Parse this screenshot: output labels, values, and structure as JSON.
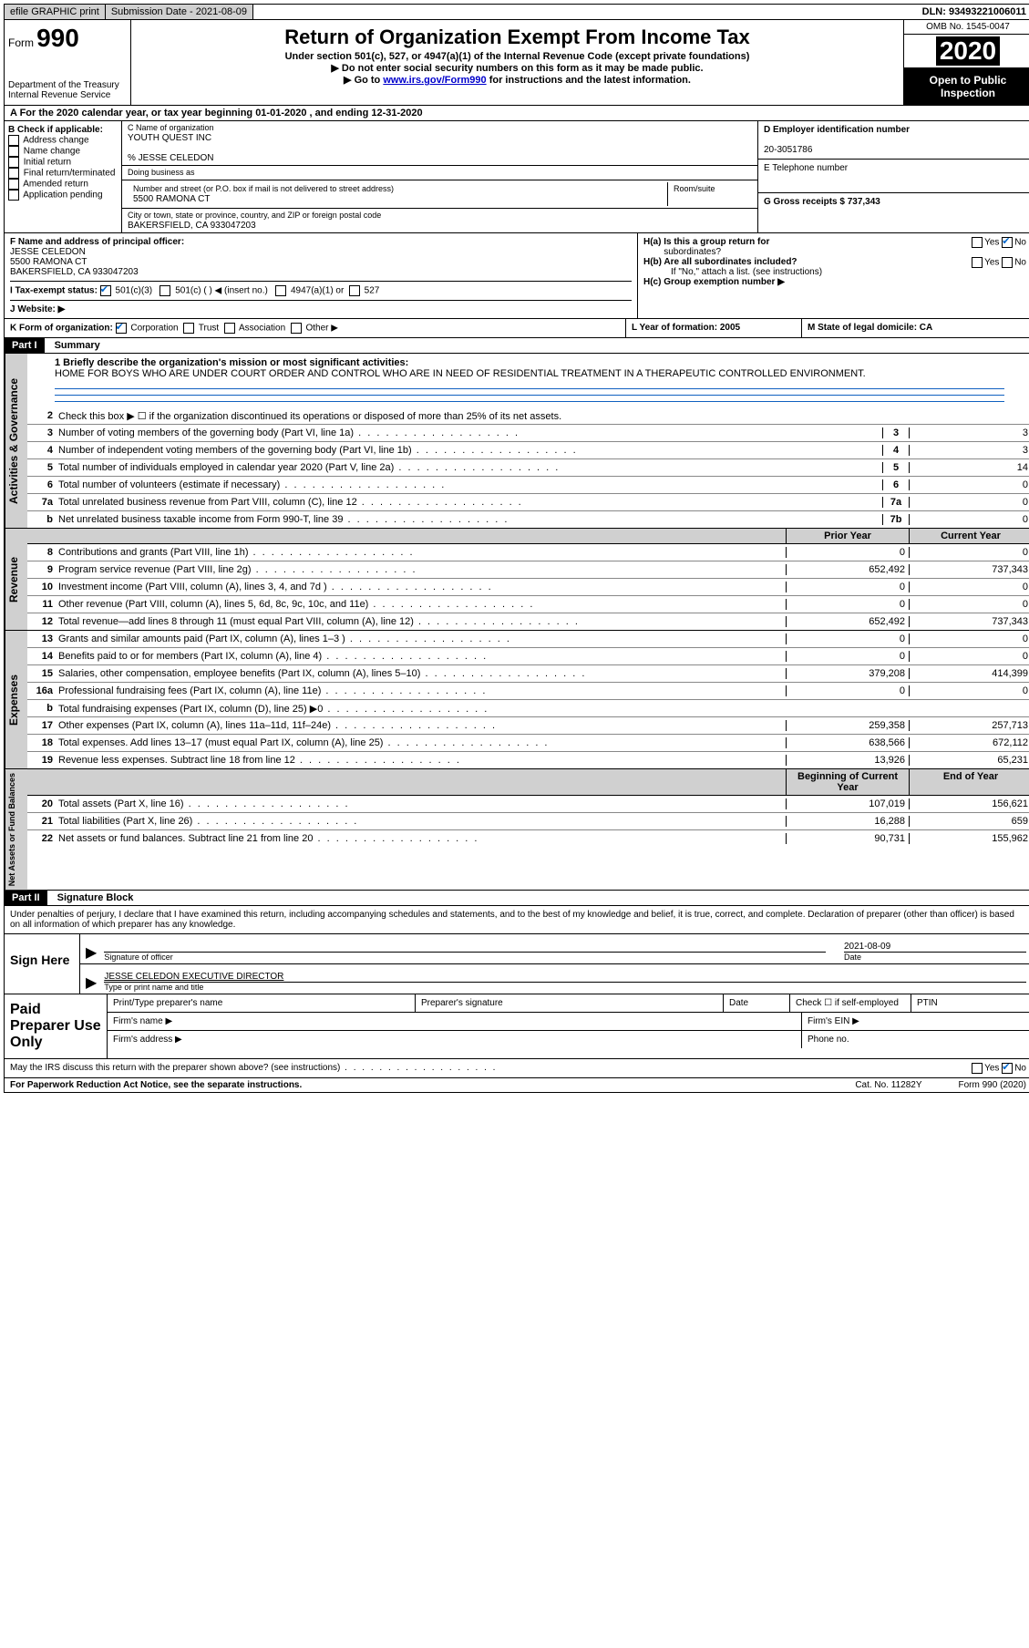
{
  "topbar": {
    "efile": "efile GRAPHIC print",
    "submission_label": "Submission Date - 2021-08-09",
    "dln": "DLN: 93493221006011"
  },
  "header": {
    "form_label": "Form",
    "form_number": "990",
    "dept": "Department of the Treasury",
    "irs": "Internal Revenue Service",
    "title": "Return of Organization Exempt From Income Tax",
    "subtitle": "Under section 501(c), 527, or 4947(a)(1) of the Internal Revenue Code (except private foundations)",
    "note1": "▶ Do not enter social security numbers on this form as it may be made public.",
    "note2_pre": "▶ Go to ",
    "note2_link": "www.irs.gov/Form990",
    "note2_post": " for instructions and the latest information.",
    "omb": "OMB No. 1545-0047",
    "year": "2020",
    "inspect1": "Open to Public",
    "inspect2": "Inspection"
  },
  "row_a": "A For the 2020 calendar year, or tax year beginning 01-01-2020    , and ending 12-31-2020",
  "section_b": {
    "label": "B Check if applicable:",
    "opts": [
      "Address change",
      "Name change",
      "Initial return",
      "Final return/terminated",
      "Amended return",
      "Application pending"
    ]
  },
  "section_c": {
    "name_lbl": "C Name of organization",
    "name": "YOUTH QUEST INC",
    "care_of": "% JESSE CELEDON",
    "dba_lbl": "Doing business as",
    "addr_lbl": "Number and street (or P.O. box if mail is not delivered to street address)",
    "room_lbl": "Room/suite",
    "addr": "5500 RAMONA CT",
    "city_lbl": "City or town, state or province, country, and ZIP or foreign postal code",
    "city": "BAKERSFIELD, CA  933047203"
  },
  "section_de": {
    "d_lbl": "D Employer identification number",
    "d_val": "20-3051786",
    "e_lbl": "E Telephone number",
    "g_lbl": "G Gross receipts $ 737,343"
  },
  "section_f": {
    "lbl": "F  Name and address of principal officer:",
    "name": "JESSE CELEDON",
    "addr1": "5500 RAMONA CT",
    "addr2": "BAKERSFIELD, CA  933047203"
  },
  "section_h": {
    "ha": "H(a)  Is this a group return for",
    "ha2": "subordinates?",
    "hb": "H(b)  Are all subordinates included?",
    "hnote": "If \"No,\" attach a list. (see instructions)",
    "hc": "H(c)  Group exemption number ▶",
    "yes": "Yes",
    "no": "No"
  },
  "row_i": {
    "lbl": "I   Tax-exempt status:",
    "o1": "501(c)(3)",
    "o2": "501(c) (   ) ◀ (insert no.)",
    "o3": "4947(a)(1) or",
    "o4": "527"
  },
  "row_j": "J   Website: ▶",
  "row_k": {
    "lbl": "K Form of organization:",
    "o1": "Corporation",
    "o2": "Trust",
    "o3": "Association",
    "o4": "Other ▶",
    "l": "L Year of formation: 2005",
    "m": "M State of legal domicile: CA"
  },
  "part1": {
    "hdr": "Part I",
    "title": "Summary",
    "line1_lbl": "1  Briefly describe the organization's mission or most significant activities:",
    "mission": "HOME FOR BOYS WHO ARE UNDER COURT ORDER AND CONTROL WHO ARE IN NEED OF RESIDENTIAL TREATMENT IN A THERAPEUTIC CONTROLLED ENVIRONMENT.",
    "line2": "Check this box ▶ ☐  if the organization discontinued its operations or disposed of more than 25% of its net assets.",
    "tabs": {
      "gov": "Activities & Governance",
      "rev": "Revenue",
      "exp": "Expenses",
      "net": "Net Assets or Fund Balances"
    },
    "gov_lines": [
      {
        "n": "3",
        "d": "Number of voting members of the governing body (Part VI, line 1a)",
        "b": "3",
        "v": "3"
      },
      {
        "n": "4",
        "d": "Number of independent voting members of the governing body (Part VI, line 1b)",
        "b": "4",
        "v": "3"
      },
      {
        "n": "5",
        "d": "Total number of individuals employed in calendar year 2020 (Part V, line 2a)",
        "b": "5",
        "v": "14"
      },
      {
        "n": "6",
        "d": "Total number of volunteers (estimate if necessary)",
        "b": "6",
        "v": "0"
      },
      {
        "n": "7a",
        "d": "Total unrelated business revenue from Part VIII, column (C), line 12",
        "b": "7a",
        "v": "0"
      },
      {
        "n": "b",
        "d": "Net unrelated business taxable income from Form 990-T, line 39",
        "b": "7b",
        "v": "0"
      }
    ],
    "col_prior": "Prior Year",
    "col_curr": "Current Year",
    "rev_lines": [
      {
        "n": "8",
        "d": "Contributions and grants (Part VIII, line 1h)",
        "p": "0",
        "c": "0"
      },
      {
        "n": "9",
        "d": "Program service revenue (Part VIII, line 2g)",
        "p": "652,492",
        "c": "737,343"
      },
      {
        "n": "10",
        "d": "Investment income (Part VIII, column (A), lines 3, 4, and 7d )",
        "p": "0",
        "c": "0"
      },
      {
        "n": "11",
        "d": "Other revenue (Part VIII, column (A), lines 5, 6d, 8c, 9c, 10c, and 11e)",
        "p": "0",
        "c": "0"
      },
      {
        "n": "12",
        "d": "Total revenue—add lines 8 through 11 (must equal Part VIII, column (A), line 12)",
        "p": "652,492",
        "c": "737,343"
      }
    ],
    "exp_lines": [
      {
        "n": "13",
        "d": "Grants and similar amounts paid (Part IX, column (A), lines 1–3 )",
        "p": "0",
        "c": "0"
      },
      {
        "n": "14",
        "d": "Benefits paid to or for members (Part IX, column (A), line 4)",
        "p": "0",
        "c": "0"
      },
      {
        "n": "15",
        "d": "Salaries, other compensation, employee benefits (Part IX, column (A), lines 5–10)",
        "p": "379,208",
        "c": "414,399"
      },
      {
        "n": "16a",
        "d": "Professional fundraising fees (Part IX, column (A), line 11e)",
        "p": "0",
        "c": "0"
      },
      {
        "n": "b",
        "d": "Total fundraising expenses (Part IX, column (D), line 25) ▶0",
        "p": "",
        "c": "",
        "shade": true
      },
      {
        "n": "17",
        "d": "Other expenses (Part IX, column (A), lines 11a–11d, 11f–24e)",
        "p": "259,358",
        "c": "257,713"
      },
      {
        "n": "18",
        "d": "Total expenses. Add lines 13–17 (must equal Part IX, column (A), line 25)",
        "p": "638,566",
        "c": "672,112"
      },
      {
        "n": "19",
        "d": "Revenue less expenses. Subtract line 18 from line 12",
        "p": "13,926",
        "c": "65,231"
      }
    ],
    "col_begin": "Beginning of Current Year",
    "col_end": "End of Year",
    "net_lines": [
      {
        "n": "20",
        "d": "Total assets (Part X, line 16)",
        "p": "107,019",
        "c": "156,621"
      },
      {
        "n": "21",
        "d": "Total liabilities (Part X, line 26)",
        "p": "16,288",
        "c": "659"
      },
      {
        "n": "22",
        "d": "Net assets or fund balances. Subtract line 21 from line 20",
        "p": "90,731",
        "c": "155,962"
      }
    ]
  },
  "part2": {
    "hdr": "Part II",
    "title": "Signature Block",
    "decl": "Under penalties of perjury, I declare that I have examined this return, including accompanying schedules and statements, and to the best of my knowledge and belief, it is true, correct, and complete. Declaration of preparer (other than officer) is based on all information of which preparer has any knowledge.",
    "sign_here": "Sign Here",
    "sig_lbl": "Signature of officer",
    "date_lbl": "Date",
    "date_val": "2021-08-09",
    "name_val": "JESSE CELEDON  EXECUTIVE DIRECTOR",
    "name_lbl": "Type or print name and title",
    "paid": "Paid Preparer Use Only",
    "p1": "Print/Type preparer's name",
    "p2": "Preparer's signature",
    "p3": "Date",
    "p4": "Check ☐ if self-employed",
    "p5": "PTIN",
    "f1": "Firm's name    ▶",
    "f2": "Firm's EIN ▶",
    "a1": "Firm's address ▶",
    "a2": "Phone no.",
    "discuss": "May the IRS discuss this return with the preparer shown above? (see instructions)"
  },
  "footer": {
    "l": "For Paperwork Reduction Act Notice, see the separate instructions.",
    "m": "Cat. No. 11282Y",
    "r": "Form 990 (2020)"
  }
}
